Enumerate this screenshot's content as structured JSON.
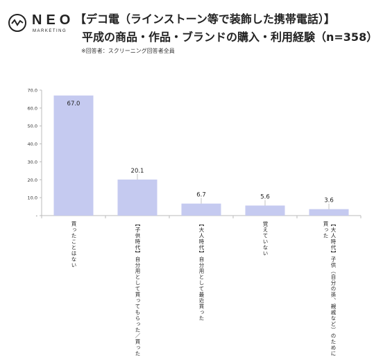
{
  "logo": {
    "name": "NEO",
    "sub": "MARKETING"
  },
  "header": {
    "title_line1": "【デコ電（ラインストーン等で装飾した携帯電話）】",
    "title_line2": "平成の商品・作品・ブランドの購入・利用経験（n=358）",
    "note": "※回答者：スクリーニング回答者全員"
  },
  "chart_data": {
    "type": "bar",
    "title": "平成の商品・作品・ブランドの購入・利用経験（n=358）",
    "categories": [
      "買ったことはない",
      "【子供時代】自分用として買ってもらった／買った",
      "【大人時代】自分用として最近買った",
      "覚えていない",
      "【大人時代】子供（自分の孫、親戚など）のために買った"
    ],
    "category_lines": [
      [
        "買ったことはない"
      ],
      [
        "【子供時代】自分用として買ってもらった／買った"
      ],
      [
        "【大人時代】自分用として最近買った"
      ],
      [
        "覚えていない"
      ],
      [
        "【大人時代】子供（自分の孫、親戚など）のために",
        "買った"
      ]
    ],
    "values": [
      67.0,
      20.1,
      6.7,
      5.6,
      3.6
    ],
    "value_labels": [
      "67.0",
      "20.1",
      "6.7",
      "5.6",
      "3.6"
    ],
    "ylim": [
      0,
      70
    ],
    "yticks": [
      0,
      10,
      20,
      30,
      40,
      50,
      60,
      70
    ],
    "ytick_labels": [
      "-",
      "10.0",
      "20.0",
      "30.0",
      "40.0",
      "50.0",
      "60.0",
      "70.0"
    ],
    "bar_color": "#c5caf0",
    "axis_color": "#bbbbbb",
    "grid": false,
    "xlabel": "",
    "ylabel": ""
  }
}
